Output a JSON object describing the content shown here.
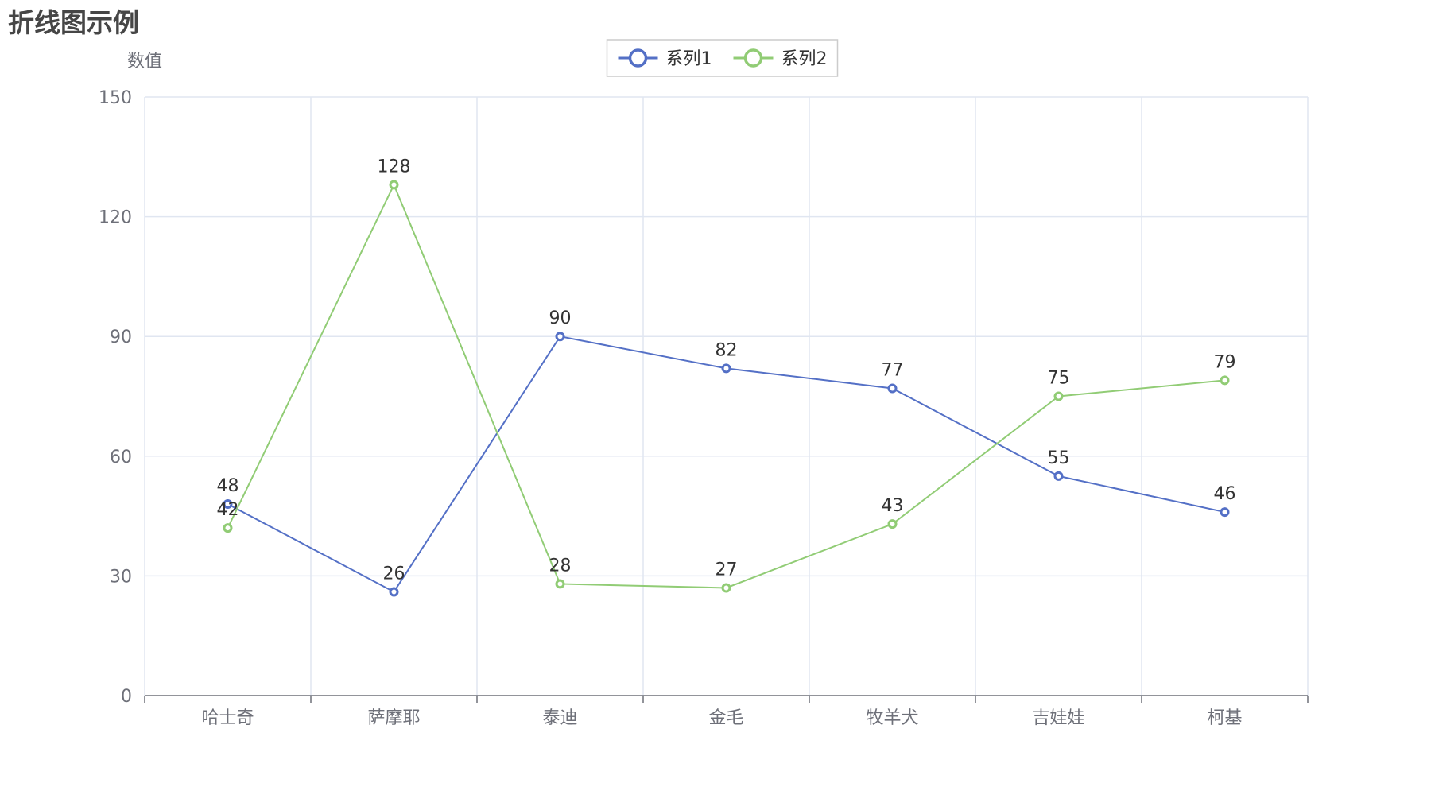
{
  "chart_data": {
    "type": "line",
    "title": "折线图示例",
    "ylabel": "数值",
    "xlabel": "",
    "categories": [
      "哈士奇",
      "萨摩耶",
      "泰迪",
      "金毛",
      "牧羊犬",
      "吉娃娃",
      "柯基"
    ],
    "ylim": [
      0,
      150
    ],
    "yticks": [
      0,
      30,
      60,
      90,
      120,
      150
    ],
    "grid": true,
    "legend_position": "top-center",
    "series": [
      {
        "name": "系列1",
        "color": "#5470c6",
        "values": [
          48,
          26,
          90,
          82,
          77,
          55,
          46
        ]
      },
      {
        "name": "系列2",
        "color": "#91cc75",
        "values": [
          42,
          128,
          28,
          27,
          43,
          75,
          79
        ]
      }
    ]
  }
}
